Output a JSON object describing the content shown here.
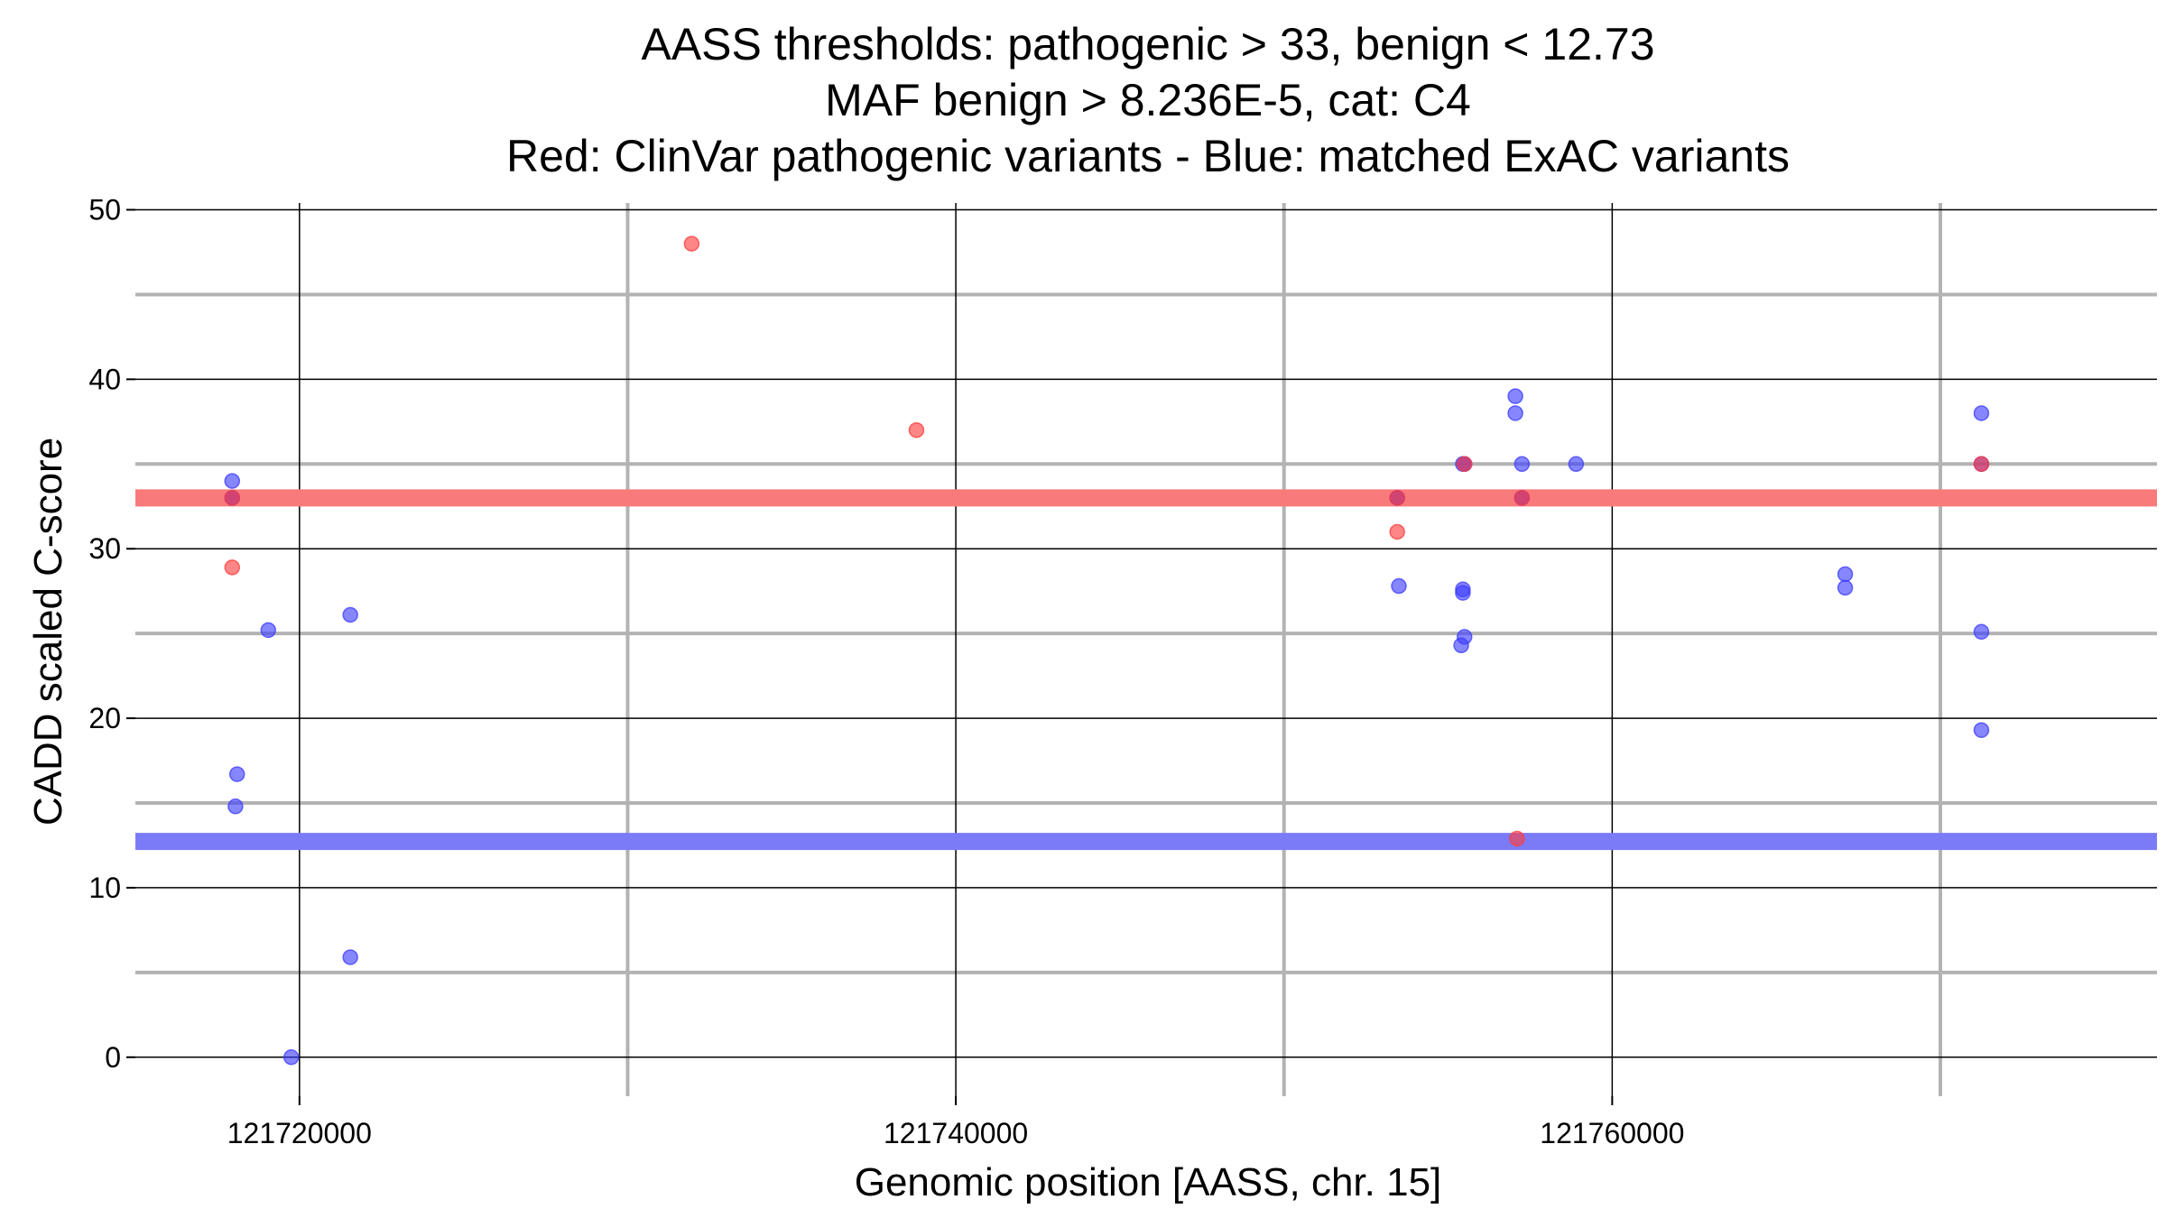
{
  "chart_data": {
    "type": "scatter",
    "title_lines": [
      "AASS thresholds: pathogenic > 33, benign < 12.73",
      "MAF benign > 8.236E-5, cat: C4",
      "Red: ClinVar pathogenic variants - Blue: matched ExAC variants"
    ],
    "xlabel": "Genomic position [AASS, chr. 15]",
    "ylabel": "CADD scaled C-score",
    "xlim": [
      121715000,
      121776600
    ],
    "ylim": [
      -2.3,
      50.4
    ],
    "x_major_ticks": [
      121720000,
      121740000,
      121760000
    ],
    "x_minor_ticks": [
      121730000,
      121750000,
      121770000
    ],
    "y_major_ticks": [
      0,
      10,
      20,
      30,
      40,
      50
    ],
    "y_minor_ticks": [
      5,
      15,
      25,
      35,
      45
    ],
    "x_tick_labels": [
      "121720000",
      "121740000",
      "121760000"
    ],
    "y_tick_labels": [
      "0",
      "10",
      "20",
      "30",
      "40",
      "50"
    ],
    "thresholds": [
      {
        "name": "pathogenic",
        "value": 33,
        "color": "#f87a7a"
      },
      {
        "name": "benign",
        "value": 12.73,
        "color": "#7b7bf8"
      }
    ],
    "colors": {
      "pathogenic_point": "#ff3b3b",
      "benign_point": "#3b3bff",
      "major_grid": "#000000",
      "minor_grid": "#b3b3b3"
    },
    "series": [
      {
        "name": "ClinVar pathogenic variants",
        "color": "#ff3b3b",
        "x": [
          121717950,
          121717950,
          121731950,
          121738800,
          121753450,
          121753450,
          121755500,
          121757100,
          121757250,
          121771250
        ],
        "y": [
          33,
          28.9,
          48,
          37,
          33,
          31,
          35,
          12.9,
          33,
          35
        ]
      },
      {
        "name": "matched ExAC variants",
        "color": "#3b3bff",
        "x": [
          121717950,
          121717950,
          121718100,
          121718050,
          121719050,
          121719750,
          121721550,
          121721550,
          121753450,
          121753500,
          121755450,
          121755450,
          121755450,
          121755500,
          121755400,
          121755500,
          121757050,
          121757050,
          121757250,
          121757250,
          121758900,
          121767100,
          121767100,
          121771250,
          121771250,
          121771250,
          121771250
        ],
        "y": [
          34,
          33,
          16.7,
          14.8,
          25.2,
          0,
          26.1,
          5.9,
          33,
          27.8,
          35,
          27.6,
          27.4,
          24.8,
          24.3,
          35,
          39,
          38,
          35,
          33,
          35,
          28.5,
          27.7,
          38,
          35,
          25.1,
          19.3
        ]
      }
    ]
  }
}
